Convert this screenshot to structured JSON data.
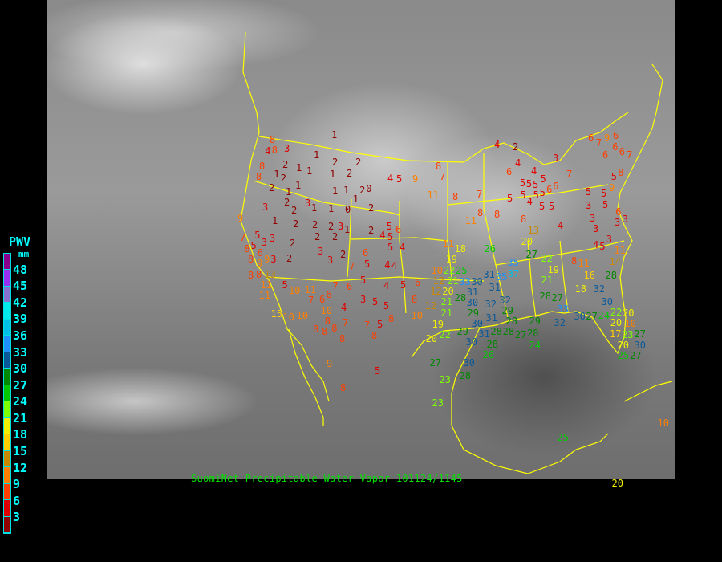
{
  "caption": "SuomiNet Precipitable Water Vapor 101124/1145",
  "legend": {
    "title": "PWV",
    "unit": "mm",
    "labels": [
      "48",
      "45",
      "42",
      "39",
      "36",
      "33",
      "30",
      "27",
      "24",
      "21",
      "18",
      "15",
      "12",
      "9",
      "6",
      "3"
    ],
    "colors": [
      "#8b008b",
      "#9a30f0",
      "#8870d0",
      "#00e8e8",
      "#00c0e8",
      "#1e90ff",
      "#0a5a9a",
      "#008800",
      "#00c800",
      "#80ff00",
      "#f0f000",
      "#ffd000",
      "#c88800",
      "#ff8000",
      "#ff4000",
      "#e00000",
      "#900000"
    ]
  },
  "stations": [
    1,
    8,
    4,
    8,
    3,
    1,
    2,
    2,
    8,
    2,
    1,
    1,
    1,
    2,
    8,
    1,
    2,
    4,
    5,
    9,
    2,
    1,
    1,
    1,
    2,
    0,
    1,
    2,
    1,
    3,
    2,
    1,
    1,
    0,
    2,
    3,
    9,
    1,
    2,
    2,
    2,
    3,
    1,
    2,
    5,
    6,
    5,
    3,
    2,
    2,
    4,
    5,
    7,
    5,
    3,
    2,
    5,
    4,
    8,
    6,
    3,
    2,
    6,
    8,
    9,
    3,
    2,
    3,
    9,
    7,
    5,
    4,
    4,
    8,
    7,
    4,
    2,
    3,
    4,
    6,
    4,
    5,
    5,
    5,
    5,
    6,
    5,
    5,
    5,
    6,
    5,
    4,
    5,
    5,
    7,
    6,
    9,
    6,
    6,
    7,
    6,
    6,
    7,
    8,
    5,
    9,
    5,
    5,
    3,
    5,
    6,
    3,
    3,
    3,
    3,
    11,
    8,
    7,
    8,
    8,
    11,
    8,
    4,
    13,
    20,
    11,
    4,
    5,
    3,
    18,
    26,
    27,
    22,
    19,
    11,
    14,
    11,
    8,
    35,
    8,
    8,
    13,
    11,
    11,
    5,
    10,
    11,
    7,
    7,
    6,
    6,
    6,
    5,
    4,
    5,
    6,
    3,
    5,
    5,
    4,
    8,
    12,
    12,
    10,
    15,
    10,
    10,
    10,
    8,
    7,
    8,
    5,
    7,
    8,
    8,
    8,
    8,
    8,
    19,
    22,
    20,
    9,
    5,
    8,
    27,
    23,
    10,
    22,
    25,
    21,
    33,
    31,
    31,
    35,
    37,
    12,
    20,
    30,
    31,
    28,
    30,
    29,
    32,
    32,
    21,
    21,
    29,
    31,
    28,
    30,
    31,
    28,
    28,
    29,
    30,
    28,
    26,
    27,
    28,
    24,
    29,
    28,
    27,
    33,
    19,
    21,
    16,
    18,
    32,
    28,
    30,
    32,
    30,
    27,
    24,
    22,
    20,
    20,
    10,
    17,
    23,
    27,
    20,
    25,
    27,
    30,
    30,
    23,
    28,
    25,
    20,
    10
  ]
}
